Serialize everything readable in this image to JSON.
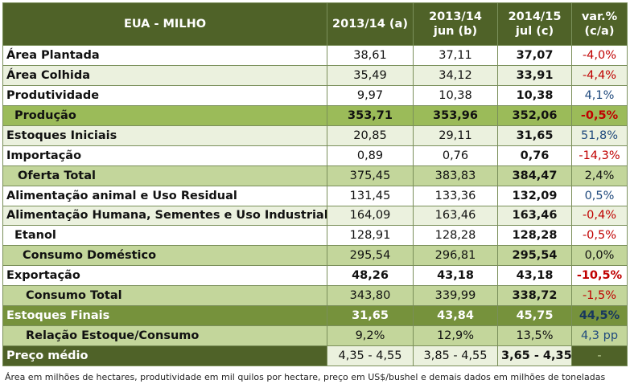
{
  "header": {
    "title": "EUA - MILHO",
    "col1": "2013/14 (a)",
    "col2_line1": "2013/14",
    "col2_line2": "jun (b)",
    "col3_line1": "2014/15",
    "col3_line2": "jul (c)",
    "col4_line1": "var.%",
    "col4_line2": "(c/a)"
  },
  "rows": [
    {
      "label": "Área Plantada",
      "a": "38,61",
      "b": "37,11",
      "c": "37,07",
      "var": "-4,0%"
    },
    {
      "label": "Área Colhida",
      "a": "35,49",
      "b": "34,12",
      "c": "33,91",
      "var": "-4,4%"
    },
    {
      "label": "Produtividade",
      "a": "9,97",
      "b": "10,38",
      "c": "10,38",
      "var": "4,1%"
    },
    {
      "label": "Produção",
      "a": "353,71",
      "b": "353,96",
      "c": "352,06",
      "var": "-0,5%"
    },
    {
      "label": "Estoques Iniciais",
      "a": "20,85",
      "b": "29,11",
      "c": "31,65",
      "var": "51,8%"
    },
    {
      "label": "Importação",
      "a": "0,89",
      "b": "0,76",
      "c": "0,76",
      "var": "-14,3%"
    },
    {
      "label": "Oferta Total",
      "a": "375,45",
      "b": "383,83",
      "c": "384,47",
      "var": "2,4%"
    },
    {
      "label": "Alimentação animal e Uso Residual",
      "a": "131,45",
      "b": "133,36",
      "c": "132,09",
      "var": "0,5%"
    },
    {
      "label": "Alimentação Humana, Sementes e Uso Industrial",
      "a": "164,09",
      "b": "163,46",
      "c": "163,46",
      "var": "-0,4%"
    },
    {
      "label": "Etanol",
      "a": "128,91",
      "b": "128,28",
      "c": "128,28",
      "var": "-0,5%"
    },
    {
      "label": "Consumo Doméstico",
      "a": "295,54",
      "b": "296,81",
      "c": "295,54",
      "var": "0,0%"
    },
    {
      "label": "Exportação",
      "a": "48,26",
      "b": "43,18",
      "c": "43,18",
      "var": "-10,5%"
    },
    {
      "label": "Consumo Total",
      "a": "343,80",
      "b": "339,99",
      "c": "338,72",
      "var": "-1,5%"
    },
    {
      "label": "Estoques Finais",
      "a": "31,65",
      "b": "43,84",
      "c": "45,75",
      "var": "44,5%"
    },
    {
      "label": "Relação Estoque/Consumo",
      "a": "9,2%",
      "b": "12,9%",
      "c": "13,5%",
      "var": "4,3 pp"
    },
    {
      "label": "Preço médio",
      "a": "4,35 - 4,55",
      "b": "3,85 - 4,55",
      "c": "3,65 - 4,35",
      "var": "-"
    }
  ],
  "footnote": "Área em milhões de hectares, produtividade em mil quilos por hectare, preço em US$/bushel e demais dados em milhões de toneladas"
}
